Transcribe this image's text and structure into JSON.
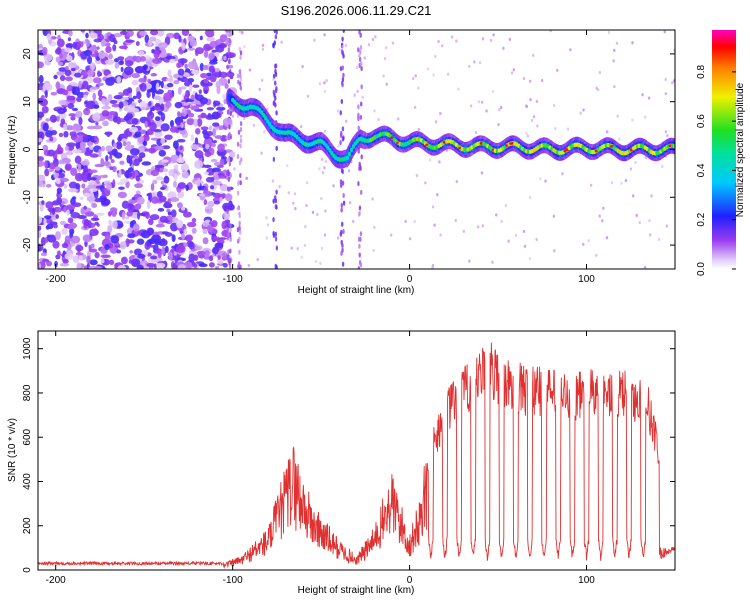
{
  "title": "S196.2026.006.11.29.C21",
  "chart_data": [
    {
      "type": "heatmap",
      "title": "S196.2026.006.11.29.C21",
      "xlabel": "Height of straight line (km)",
      "ylabel": "Frequency (Hz)",
      "xlim": [
        -210,
        150
      ],
      "ylim": [
        -25,
        25
      ],
      "xticks": [
        -200,
        -100,
        0,
        100
      ],
      "yticks": [
        -20,
        -10,
        0,
        10,
        20
      ],
      "colorbar": {
        "label": "Normalized spectral amplitude",
        "range": [
          0,
          0.97
        ],
        "ticks": [
          0.0,
          0.2,
          0.4,
          0.6,
          0.8
        ],
        "colormap": "rainbow (white-violet-blue-cyan-green-yellow-red-magenta)"
      },
      "features": {
        "noise_region_km": [
          -210,
          -100
        ],
        "noise_amplitude_range": [
          0.05,
          0.2
        ],
        "signal_track": [
          {
            "x": -100,
            "freq": 10
          },
          {
            "x": -90,
            "freq": 9
          },
          {
            "x": -80,
            "freq": 6
          },
          {
            "x": -70,
            "freq": 3
          },
          {
            "x": -60,
            "freq": 2
          },
          {
            "x": -50,
            "freq": 1
          },
          {
            "x": -42,
            "freq": -1
          },
          {
            "x": -35,
            "freq": -2
          },
          {
            "x": -28,
            "freq": 2
          },
          {
            "x": -20,
            "freq": 3
          },
          {
            "x": 0,
            "freq": 1.5
          },
          {
            "x": 20,
            "freq": 1
          },
          {
            "x": 40,
            "freq": 0.5
          },
          {
            "x": 60,
            "freq": 0.5
          },
          {
            "x": 80,
            "freq": 0
          },
          {
            "x": 100,
            "freq": 0.3
          },
          {
            "x": 120,
            "freq": 0
          },
          {
            "x": 150,
            "freq": 0
          }
        ]
      }
    },
    {
      "type": "line",
      "xlabel": "Height of straight line (km)",
      "ylabel": "SNR (10 * v/v)",
      "xlim": [
        -210,
        150
      ],
      "ylim": [
        0,
        1080
      ],
      "xticks": [
        -200,
        -100,
        0,
        100
      ],
      "yticks": [
        0,
        200,
        400,
        600,
        800,
        1000
      ],
      "series": [
        {
          "name": "SNR",
          "color": "#e03030",
          "envelope": [
            {
              "x": -210,
              "y": 30
            },
            {
              "x": -105,
              "y": 30
            },
            {
              "x": -95,
              "y": 60
            },
            {
              "x": -80,
              "y": 180
            },
            {
              "x": -66,
              "y": 540
            },
            {
              "x": -55,
              "y": 280
            },
            {
              "x": -40,
              "y": 130
            },
            {
              "x": -30,
              "y": 60
            },
            {
              "x": -20,
              "y": 180
            },
            {
              "x": -10,
              "y": 420
            },
            {
              "x": 0,
              "y": 150
            },
            {
              "x": 5,
              "y": 280
            },
            {
              "x": 10,
              "y": 520
            },
            {
              "x": 20,
              "y": 740
            },
            {
              "x": 30,
              "y": 830
            },
            {
              "x": 45,
              "y": 950
            },
            {
              "x": 55,
              "y": 870
            },
            {
              "x": 70,
              "y": 840
            },
            {
              "x": 90,
              "y": 820
            },
            {
              "x": 110,
              "y": 830
            },
            {
              "x": 125,
              "y": 820
            },
            {
              "x": 135,
              "y": 760
            },
            {
              "x": 140,
              "y": 600
            },
            {
              "x": 144,
              "y": 80
            },
            {
              "x": 150,
              "y": 100
            }
          ],
          "dropout_positions_km": [
            12,
            20,
            28,
            36,
            44,
            52,
            60,
            68,
            76,
            84,
            92,
            100,
            108,
            116,
            124,
            132
          ],
          "dropout_level": 40
        }
      ]
    }
  ]
}
